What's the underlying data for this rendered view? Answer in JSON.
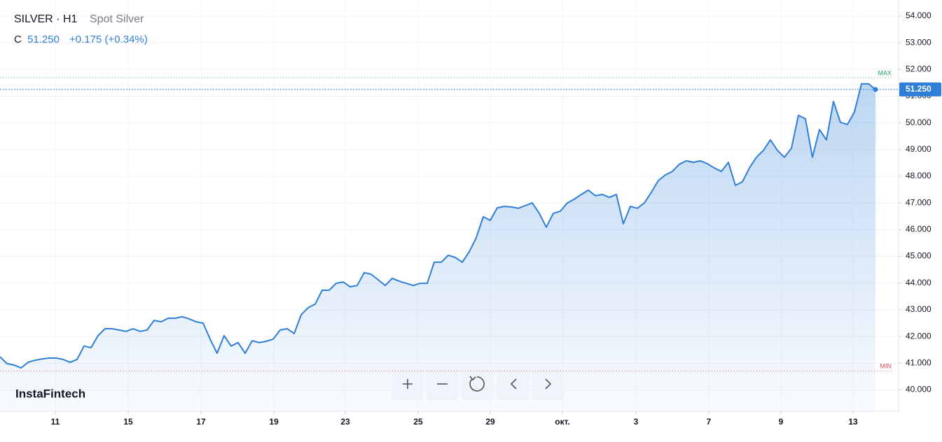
{
  "chart_data": {
    "type": "area-line",
    "title": "SILVER · H1",
    "ohlc_label": "C",
    "close_text": "51.250",
    "change_text": "+0.175 (+0.34%)",
    "brand": "InstaFintech",
    "series": [
      {
        "name": "Spot Silver",
        "color": "#2f7fd8",
        "values": [
          41.24,
          40.98,
          40.93,
          40.82,
          41.03,
          41.11,
          41.16,
          41.19,
          41.19,
          41.14,
          41.03,
          41.14,
          41.64,
          41.58,
          42.03,
          42.29,
          42.29,
          42.24,
          42.19,
          42.29,
          42.19,
          42.24,
          42.6,
          42.55,
          42.68,
          42.68,
          42.74,
          42.66,
          42.55,
          42.5,
          41.9,
          41.37,
          42.03,
          41.64,
          41.77,
          41.37,
          41.84,
          41.77,
          41.82,
          41.9,
          42.24,
          42.29,
          42.11,
          42.81,
          43.08,
          43.21,
          43.73,
          43.73,
          43.99,
          44.04,
          43.86,
          43.91,
          44.39,
          44.33,
          44.12,
          43.91,
          44.18,
          44.07,
          43.99,
          43.91,
          43.99,
          43.99,
          44.78,
          44.78,
          45.04,
          44.96,
          44.78,
          45.17,
          45.7,
          46.48,
          46.35,
          46.82,
          46.87,
          46.85,
          46.8,
          46.9,
          47.0,
          46.61,
          46.09,
          46.61,
          46.69,
          47.0,
          47.14,
          47.32,
          47.48,
          47.27,
          47.32,
          47.21,
          47.32,
          46.22,
          46.87,
          46.8,
          47.0,
          47.4,
          47.84,
          48.05,
          48.18,
          48.45,
          48.58,
          48.52,
          48.58,
          48.47,
          48.31,
          48.18,
          48.52,
          47.66,
          47.79,
          48.31,
          48.71,
          48.97,
          49.36,
          48.97,
          48.71,
          49.05,
          50.28,
          50.15,
          48.71,
          49.75,
          49.36,
          50.8,
          50.02,
          49.94,
          50.41,
          51.46,
          51.46,
          51.25
        ]
      }
    ],
    "xlim": [
      0,
      128.3
    ],
    "xticks": [
      {
        "value": 7.9,
        "label": "11"
      },
      {
        "value": 18.3,
        "label": "15"
      },
      {
        "value": 28.7,
        "label": "17"
      },
      {
        "value": 39.1,
        "label": "19"
      },
      {
        "value": 49.3,
        "label": "23"
      },
      {
        "value": 59.7,
        "label": "25"
      },
      {
        "value": 70.0,
        "label": "29"
      },
      {
        "value": 80.3,
        "label": "окт."
      },
      {
        "value": 90.8,
        "label": "3"
      },
      {
        "value": 101.2,
        "label": "7"
      },
      {
        "value": 111.5,
        "label": "9"
      },
      {
        "value": 121.8,
        "label": "13"
      }
    ],
    "ylim": [
      39.2,
      54.6
    ],
    "yticks": [
      {
        "value": 40,
        "label": "40.000"
      },
      {
        "value": 41,
        "label": "41.000"
      },
      {
        "value": 42,
        "label": "42.000"
      },
      {
        "value": 43,
        "label": "43.000"
      },
      {
        "value": 44,
        "label": "44.000"
      },
      {
        "value": 45,
        "label": "45.000"
      },
      {
        "value": 46,
        "label": "46.000"
      },
      {
        "value": 47,
        "label": "47.000"
      },
      {
        "value": 48,
        "label": "48.000"
      },
      {
        "value": 49,
        "label": "49.000"
      },
      {
        "value": 50,
        "label": "50.000"
      },
      {
        "value": 51,
        "label": "51.000"
      },
      {
        "value": 52,
        "label": "52.000"
      },
      {
        "value": 53,
        "label": "53.000"
      },
      {
        "value": 54,
        "label": "54.000"
      }
    ],
    "grid": true,
    "annotations": [
      {
        "label": "MAX",
        "value": 51.69,
        "color": "#26a65b"
      },
      {
        "label": "MIN",
        "value": 40.71,
        "color": "#e0474c"
      }
    ],
    "price_tag": {
      "value": 51.25,
      "label": "51.250"
    }
  }
}
